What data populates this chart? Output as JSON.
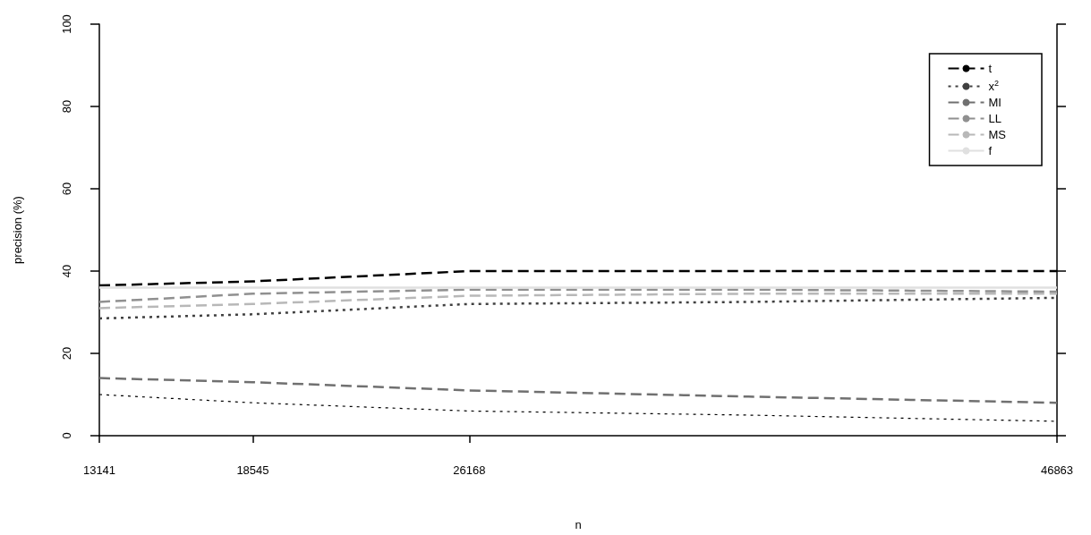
{
  "chart_data": {
    "type": "line",
    "xlabel": "n",
    "ylabel": "precision (%)",
    "x": [
      13141,
      18545,
      26168,
      36000,
      46863
    ],
    "series": [
      {
        "name": "t",
        "color": "#000000",
        "line_style": "dashed",
        "values": [
          36.5,
          37.5,
          40,
          40,
          40
        ]
      },
      {
        "name": "x$^{2}$",
        "color": "#404040",
        "line_style": "dotted",
        "values": [
          28.5,
          29.5,
          32,
          32.5,
          33.5
        ]
      },
      {
        "name": "MI",
        "color": "#707070",
        "line_style": "dashed",
        "values": [
          14,
          13,
          11,
          9.5,
          8
        ]
      },
      {
        "name": "LL",
        "color": "#909090",
        "line_style": "dashed",
        "values": [
          32.5,
          34.5,
          35.5,
          35.5,
          35
        ]
      },
      {
        "name": "MS",
        "color": "#b8b8b8",
        "line_style": "dashed",
        "values": [
          31,
          32,
          34,
          34.5,
          34.5
        ]
      },
      {
        "name": "f",
        "color": "#e0e0e0",
        "line_style": "solid",
        "values": [
          36,
          36,
          36,
          36,
          36
        ]
      },
      {
        "color": "#000000",
        "line_style": "dotted",
        "values": [
          10,
          8,
          6,
          5,
          3.5
        ]
      }
    ],
    "xlim": [
      13141,
      46863
    ],
    "xticks": [
      13141,
      18545,
      26168,
      46863
    ],
    "ylim": [
      0,
      100
    ],
    "yticks": [
      0,
      20,
      40,
      60,
      80,
      100
    ],
    "grid": false,
    "legend": "top right",
    "marker": "none"
  }
}
